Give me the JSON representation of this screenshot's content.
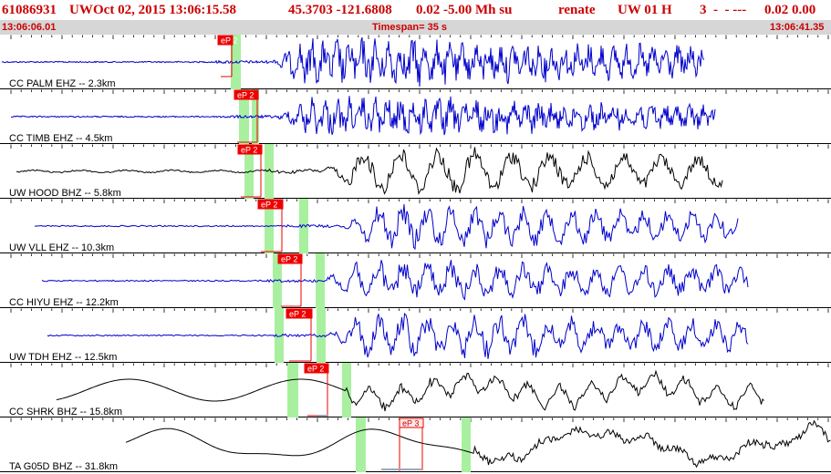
{
  "header": {
    "event_id": "61086931",
    "network": "UW",
    "datetime": "Oct 02, 2015 13:06:15.58",
    "location": "45.3703 -121.6808",
    "magnitude": "0.02 -5.00 Mh su",
    "analyst": "renate",
    "source": "UW 01 H",
    "quality": "3  -  - ---",
    "residual": "0.02 0.00"
  },
  "subheader": {
    "start_time": "13:06:06.01",
    "timespan": "Timespan=  35 s",
    "end_time": "13:06:41.35"
  },
  "colors": {
    "header_text": "#cc0000",
    "subheader_bg": "#d6d6d6",
    "trace_blue": "#0000cc",
    "trace_black": "#000000",
    "pick_red": "#ee0000",
    "window_green": "#a8f0a0"
  },
  "channels": [
    {
      "label": "CC PALM EHZ -- 2.3km",
      "pick": "eP 2",
      "color": "#0000cc"
    },
    {
      "label": "CC TIMB EHZ -- 4.5km",
      "pick": "eP 2",
      "color": "#0000cc"
    },
    {
      "label": "UW HOOD BHZ -- 5.8km",
      "pick": "eP 2",
      "color": "#000000"
    },
    {
      "label": "UW VLL EHZ -- 10.3km",
      "pick": "eP 2",
      "color": "#0000cc"
    },
    {
      "label": "CC HIYU EHZ -- 12.2km",
      "pick": "eP 2",
      "color": "#0000cc"
    },
    {
      "label": "UW TDH EHZ -- 12.5km",
      "pick": "eP 2",
      "color": "#0000cc"
    },
    {
      "label": "CC SHRK BHZ -- 15.8km",
      "pick": "eP 2",
      "color": "#000000"
    },
    {
      "label": "TA G05D BHZ -- 31.8km",
      "pick": "eP 3",
      "color": "#000000"
    }
  ]
}
